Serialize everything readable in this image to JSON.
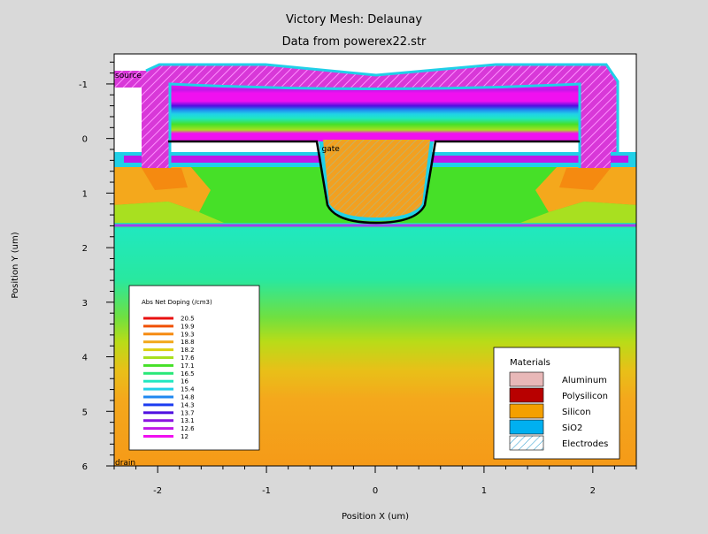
{
  "chart_data": {
    "type": "heatmap",
    "title": "Victory Mesh: Delaunay",
    "subtitle": "Data from powerex22.str",
    "xlabel": "Position X (um)",
    "ylabel": "Position Y (um)",
    "xlim": [
      -2.4,
      2.4
    ],
    "ylim": [
      6,
      -1.55
    ],
    "x_ticks": [
      -2,
      -1,
      0,
      1,
      2
    ],
    "x_tick_labels": [
      "-2",
      "-1",
      "0",
      "1",
      "2"
    ],
    "y_ticks": [
      -1,
      0,
      1,
      2,
      3,
      4,
      5,
      6
    ],
    "y_tick_labels": [
      "-1",
      "0",
      "1",
      "2",
      "3",
      "4",
      "5",
      "6"
    ],
    "electrode_labels": [
      {
        "text": "source",
        "x": -2.4,
        "y": -1.1
      },
      {
        "text": "gate",
        "x": -0.5,
        "y": 0.25
      },
      {
        "text": "drain",
        "x": -2.4,
        "y": 6.0
      }
    ],
    "doping_legend": {
      "title": "Abs Net Doping (/cm3)",
      "levels": [
        "20.5",
        "19.9",
        "19.3",
        "18.8",
        "18.2",
        "17.6",
        "17.1",
        "16.5",
        "16",
        "15.4",
        "14.8",
        "14.3",
        "13.7",
        "13.1",
        "12.6",
        "12"
      ],
      "colors": [
        "#e81010",
        "#f05000",
        "#f58a10",
        "#f2a81c",
        "#dcd010",
        "#a8e020",
        "#46e028",
        "#28e878",
        "#20e8c0",
        "#20d0e8",
        "#2088f0",
        "#1c3cf0",
        "#5010e0",
        "#8c14e0",
        "#c018e8",
        "#f010f0"
      ]
    },
    "materials_legend": {
      "title": "Materials",
      "items": [
        {
          "label": "Aluminum",
          "color": "#e8b8b8"
        },
        {
          "label": "Polysilicon",
          "color": "#b80000"
        },
        {
          "label": "Silicon",
          "color": "#f4a000"
        },
        {
          "label": "SiO2",
          "color": "#00b0f0"
        },
        {
          "label": "Electrodes",
          "color": "hatch"
        }
      ]
    }
  }
}
